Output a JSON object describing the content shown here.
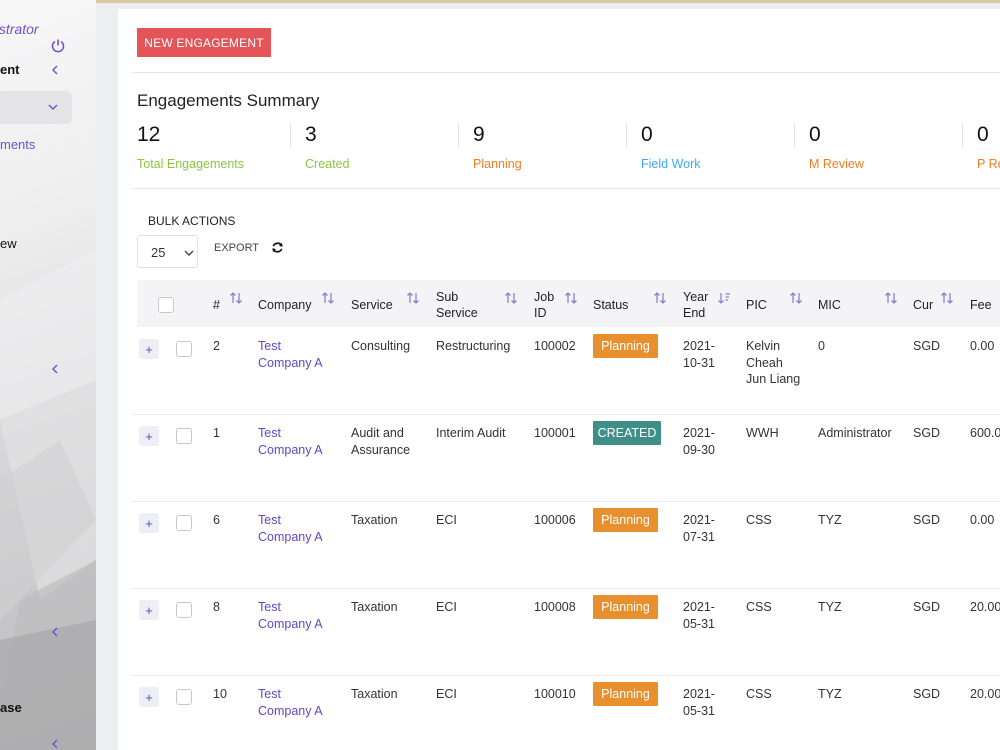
{
  "sidebar": {
    "user_role": "nistrator",
    "items": [
      {
        "label": "ent"
      },
      {
        "label": "ments"
      },
      {
        "label": "ew"
      },
      {
        "label": "ase"
      }
    ]
  },
  "toolbar": {
    "new_label": "NEW ENGAGEMENT"
  },
  "summary": {
    "title": "Engagements Summary",
    "stats": [
      {
        "value": "12",
        "label": "Total Engagements",
        "color": "#8cc63f"
      },
      {
        "value": "3",
        "label": "Created",
        "color": "#8cc63f"
      },
      {
        "value": "9",
        "label": "Planning",
        "color": "#f07d22"
      },
      {
        "value": "0",
        "label": "Field Work",
        "color": "#3fa9f5"
      },
      {
        "value": "0",
        "label": "M Review",
        "color": "#f07d22"
      },
      {
        "value": "0",
        "label": "P Re",
        "color": "#f07d22"
      }
    ]
  },
  "controls": {
    "bulk_label": "BULK ACTIONS",
    "page_size": "25",
    "export_label": "EXPORT"
  },
  "table": {
    "headers": {
      "num": "#",
      "company": "Company",
      "service": "Service",
      "sub_service": "Sub Service",
      "job_id": "Job ID",
      "status": "Status",
      "year_end": "Year End",
      "pic": "PIC",
      "mic": "MIC",
      "cur": "Cur",
      "fee": "Fee"
    },
    "rows": [
      {
        "num": "2",
        "company": "Test Company A",
        "service": "Consulting",
        "sub_service": "Restructuring",
        "job_id": "100002",
        "status": "Planning",
        "status_color": "#e8902e",
        "year_end": "2021-10-31",
        "pic": "Kelvin Cheah Jun Liang",
        "mic": "0",
        "cur": "SGD",
        "fee": "0.00"
      },
      {
        "num": "1",
        "company": "Test Company A",
        "service": "Audit and Assurance",
        "sub_service": "Interim Audit",
        "job_id": "100001",
        "status": "CREATED",
        "status_color": "#3f8f88",
        "year_end": "2021-09-30",
        "pic": "WWH",
        "mic": "Administrator",
        "cur": "SGD",
        "fee": "600.0"
      },
      {
        "num": "6",
        "company": "Test Company A",
        "service": "Taxation",
        "sub_service": "ECI",
        "job_id": "100006",
        "status": "Planning",
        "status_color": "#e8902e",
        "year_end": "2021-07-31",
        "pic": "CSS",
        "mic": "TYZ",
        "cur": "SGD",
        "fee": "0.00"
      },
      {
        "num": "8",
        "company": "Test Company A",
        "service": "Taxation",
        "sub_service": "ECI",
        "job_id": "100008",
        "status": "Planning",
        "status_color": "#e8902e",
        "year_end": "2021-05-31",
        "pic": "CSS",
        "mic": "TYZ",
        "cur": "SGD",
        "fee": "20.00"
      },
      {
        "num": "10",
        "company": "Test Company A",
        "service": "Taxation",
        "sub_service": "ECI",
        "job_id": "100010",
        "status": "Planning",
        "status_color": "#e8902e",
        "year_end": "2021-05-31",
        "pic": "CSS",
        "mic": "TYZ",
        "cur": "SGD",
        "fee": "20.00"
      }
    ]
  },
  "colors": {
    "accent": "#6247c4",
    "new_button": "#e4555a"
  }
}
